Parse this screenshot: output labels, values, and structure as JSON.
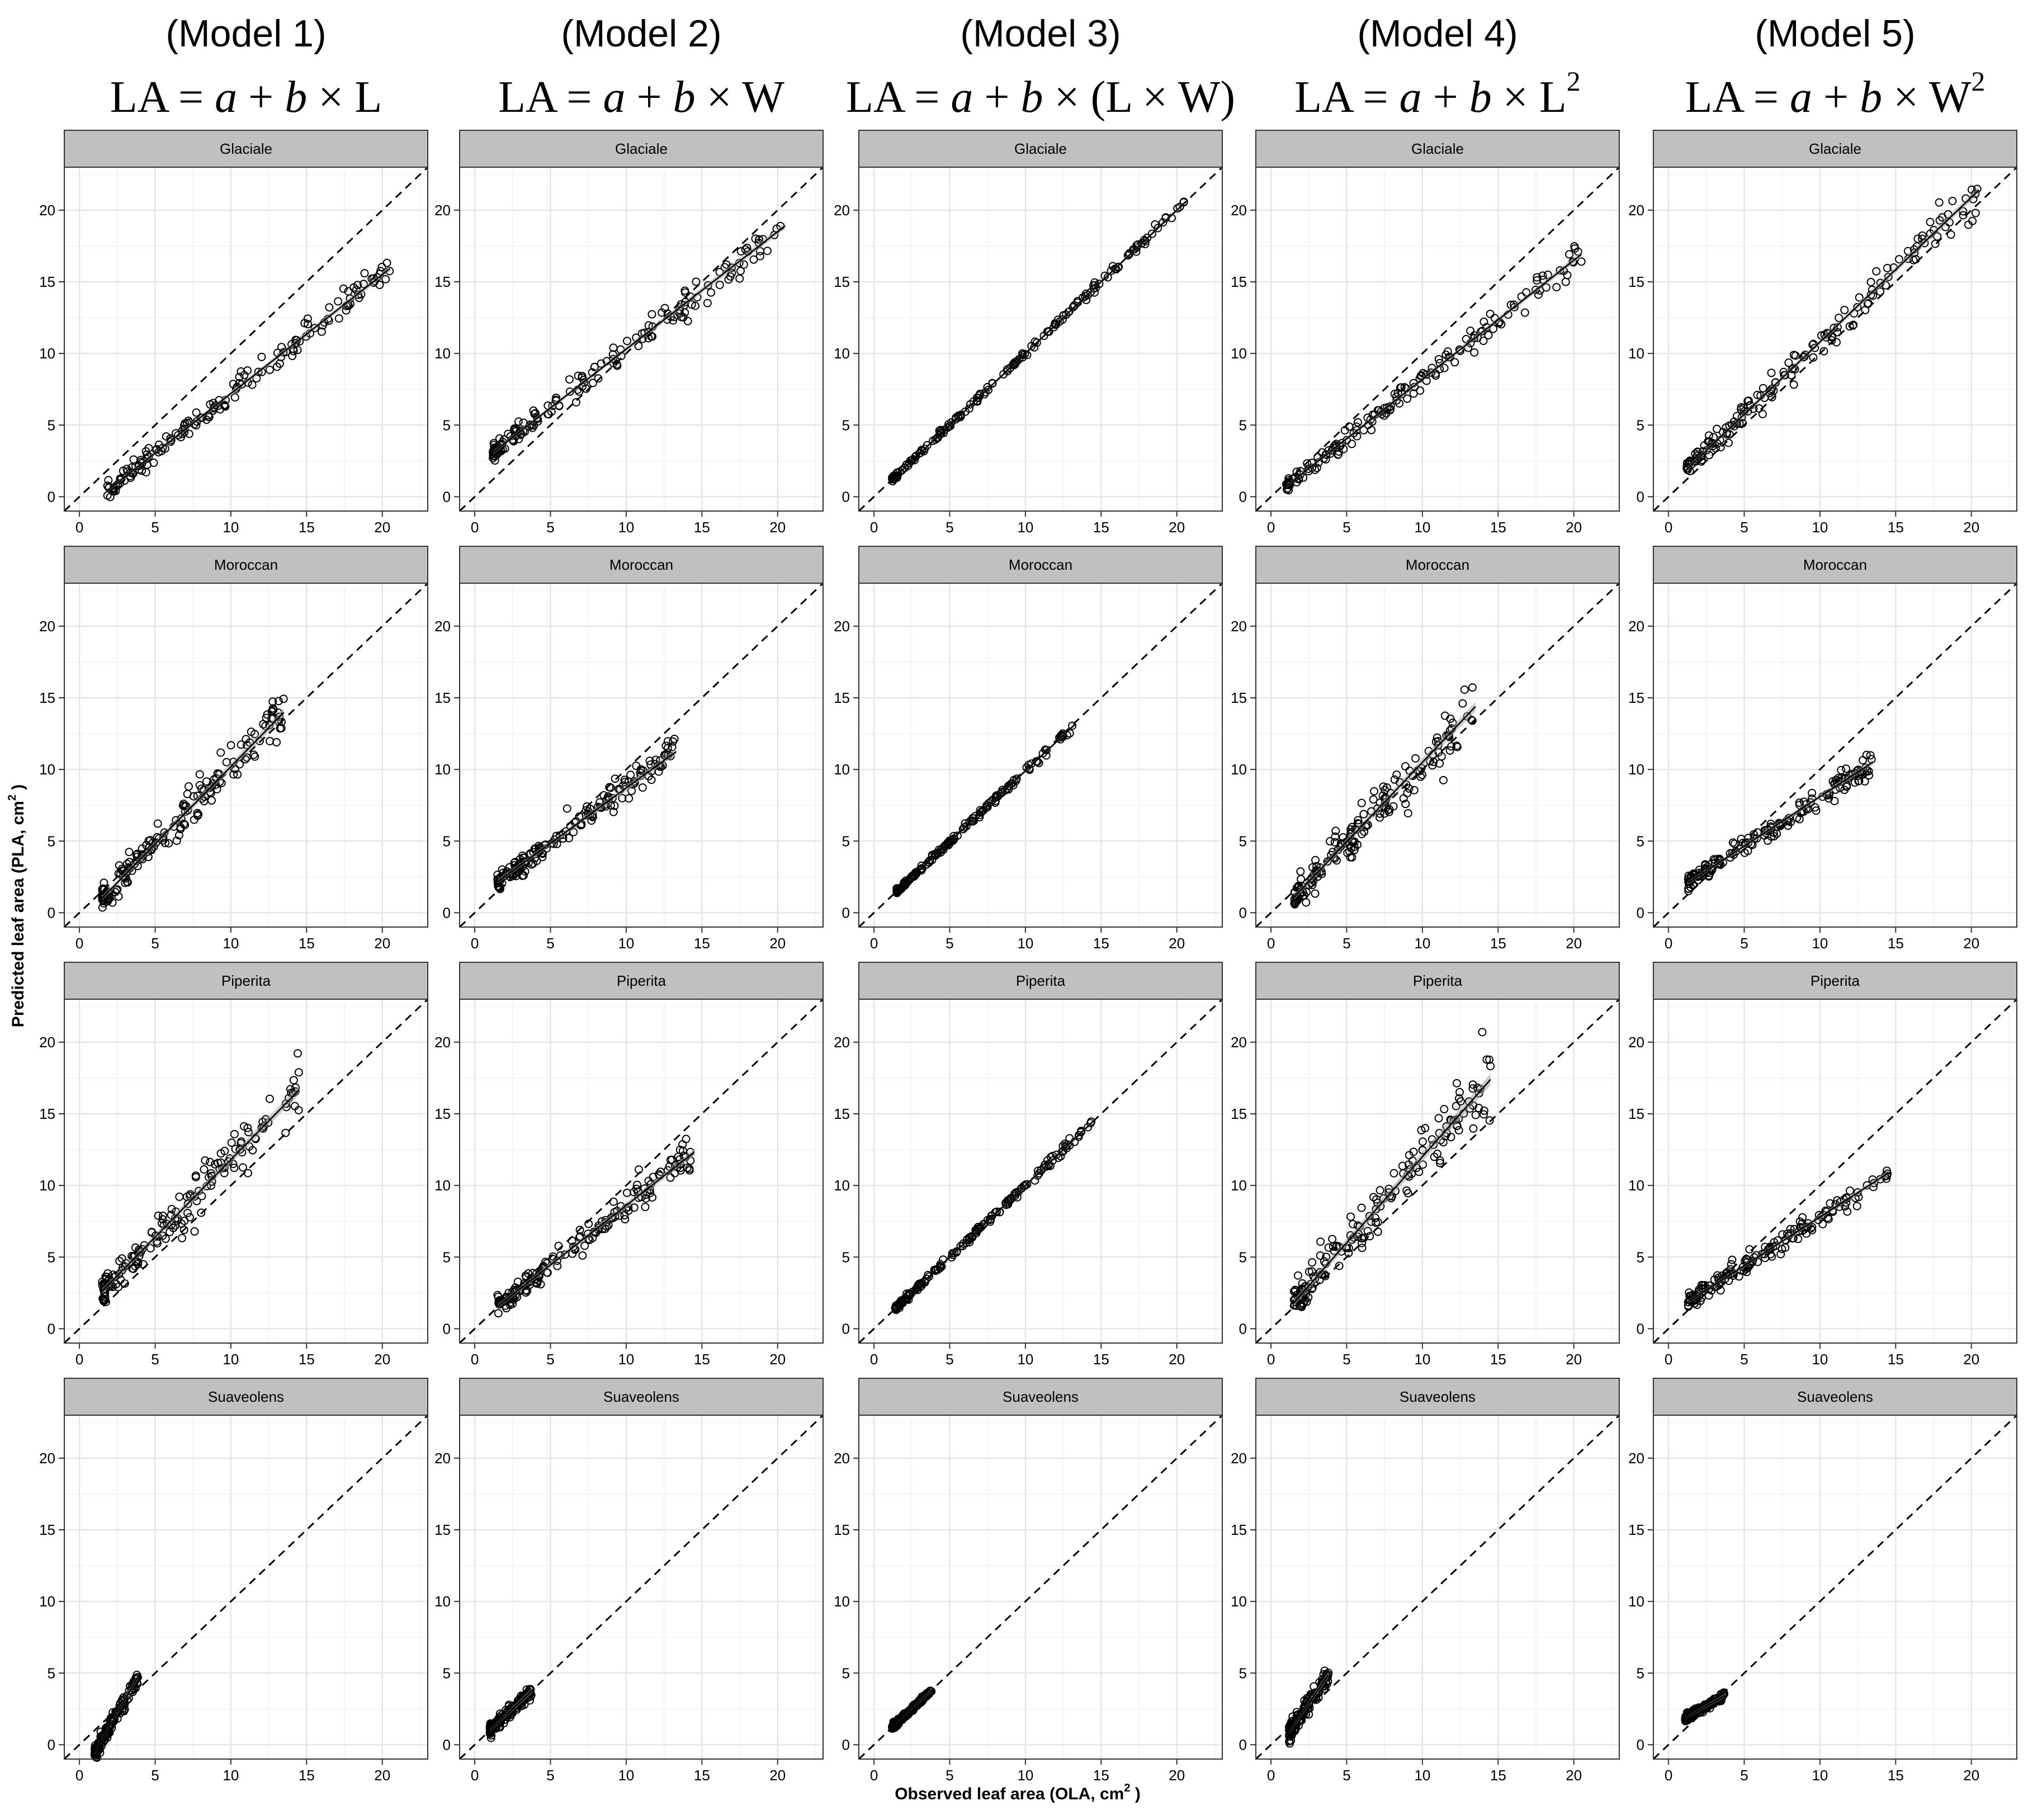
{
  "chart_data": {
    "type": "scatter",
    "layout": "facet grid: rows = mint types, columns = models",
    "column_titles": [
      "(Model 1)",
      "(Model 2)",
      "(Model 3)",
      "(Model 4)",
      "(Model 5)"
    ],
    "formulas": [
      {
        "pre": "LA = ",
        "a": "a",
        "mid": " + ",
        "b": "b",
        "post": " × L",
        "sup": ""
      },
      {
        "pre": "LA = ",
        "a": "a",
        "mid": " + ",
        "b": "b",
        "post": " × W",
        "sup": ""
      },
      {
        "pre": "LA = ",
        "a": "a",
        "mid": " + ",
        "b": "b",
        "post": " × (L × W)",
        "sup": ""
      },
      {
        "pre": "LA = ",
        "a": "a",
        "mid": " + ",
        "b": "b",
        "post": " × L",
        "sup": "2"
      },
      {
        "pre": "LA = ",
        "a": "a",
        "mid": " + ",
        "b": "b",
        "post": " × W",
        "sup": "2"
      }
    ],
    "row_labels": [
      "Glaciale",
      "Moroccan",
      "Piperita",
      "Suaveolens"
    ],
    "xlabel": {
      "text": "Observed leaf area (OLA,  cm",
      "sup": "2",
      "end": " )"
    },
    "ylabel": {
      "text": "Predicted leaf area (PLA,  cm",
      "sup": "2",
      "end": " )"
    },
    "xlim": [
      -1,
      23
    ],
    "ylim": [
      -1,
      23
    ],
    "x_ticks": [
      0,
      5,
      10,
      15,
      20
    ],
    "y_ticks": [
      0,
      5,
      10,
      15,
      20
    ],
    "tick_labels": [
      "0",
      "5",
      "10",
      "15",
      "20"
    ],
    "reference_line": {
      "kind": "1:1",
      "style": "dashed"
    },
    "grid": true,
    "panels": [
      [
        {
          "fit": {
            "slope": 0.83,
            "intercept": -1.1
          },
          "x_range": [
            1.8,
            20.5
          ],
          "spread": 0.35
        },
        {
          "fit": {
            "slope": 0.82,
            "intercept": 2.1
          },
          "x_range": [
            1.2,
            20.5
          ],
          "spread": 0.4
        },
        {
          "fit": {
            "slope": 1.0,
            "intercept": 0.0
          },
          "x_range": [
            1.2,
            20.5
          ],
          "spread": 0.1
        },
        {
          "fit": {
            "slope": 0.83,
            "intercept": -0.1
          },
          "x_range": [
            1.0,
            20.5
          ],
          "spread": 0.35
        },
        {
          "fit": {
            "slope": 1.01,
            "intercept": 0.7
          },
          "x_range": [
            1.2,
            20.5
          ],
          "spread": 0.45
        }
      ],
      [
        {
          "fit": {
            "slope": 1.08,
            "intercept": -0.6
          },
          "x_range": [
            1.5,
            13.5
          ],
          "spread": 0.6
        },
        {
          "fit": {
            "slope": 0.77,
            "intercept": 1.0
          },
          "x_range": [
            1.5,
            13.3
          ],
          "spread": 0.45
        },
        {
          "fit": {
            "slope": 0.99,
            "intercept": 0.0
          },
          "x_range": [
            1.5,
            13.3
          ],
          "spread": 0.1
        },
        {
          "fit": {
            "slope": 1.11,
            "intercept": -0.6
          },
          "x_range": [
            1.5,
            13.5
          ],
          "spread": 0.7
        },
        {
          "fit": {
            "slope": 0.69,
            "intercept": 1.2
          },
          "x_range": [
            1.3,
            13.5
          ],
          "spread": 0.35
        }
      ],
      [
        {
          "fit": {
            "slope": 1.08,
            "intercept": 1.0
          },
          "x_range": [
            1.5,
            14.5
          ],
          "spread": 0.7
        },
        {
          "fit": {
            "slope": 0.83,
            "intercept": 0.3
          },
          "x_range": [
            1.5,
            14.5
          ],
          "spread": 0.45
        },
        {
          "fit": {
            "slope": 1.0,
            "intercept": 0.0
          },
          "x_range": [
            1.4,
            14.5
          ],
          "spread": 0.12
        },
        {
          "fit": {
            "slope": 1.2,
            "intercept": 0.0
          },
          "x_range": [
            1.5,
            14.5
          ],
          "spread": 0.9
        },
        {
          "fit": {
            "slope": 0.68,
            "intercept": 1.0
          },
          "x_range": [
            1.3,
            14.5
          ],
          "spread": 0.3
        }
      ],
      [
        {
          "fit": {
            "slope": 1.85,
            "intercept": -2.4
          },
          "x_range": [
            1.0,
            3.9
          ],
          "spread": 0.35
        },
        {
          "fit": {
            "slope": 1.0,
            "intercept": 0.0
          },
          "x_range": [
            1.0,
            3.8
          ],
          "spread": 0.3
        },
        {
          "fit": {
            "slope": 1.0,
            "intercept": 0.0
          },
          "x_range": [
            1.2,
            3.8
          ],
          "spread": 0.12
        },
        {
          "fit": {
            "slope": 1.55,
            "intercept": -1.0
          },
          "x_range": [
            1.2,
            3.8
          ],
          "spread": 0.4
        },
        {
          "fit": {
            "slope": 0.6,
            "intercept": 1.2
          },
          "x_range": [
            1.1,
            3.7
          ],
          "spread": 0.15
        }
      ]
    ]
  }
}
